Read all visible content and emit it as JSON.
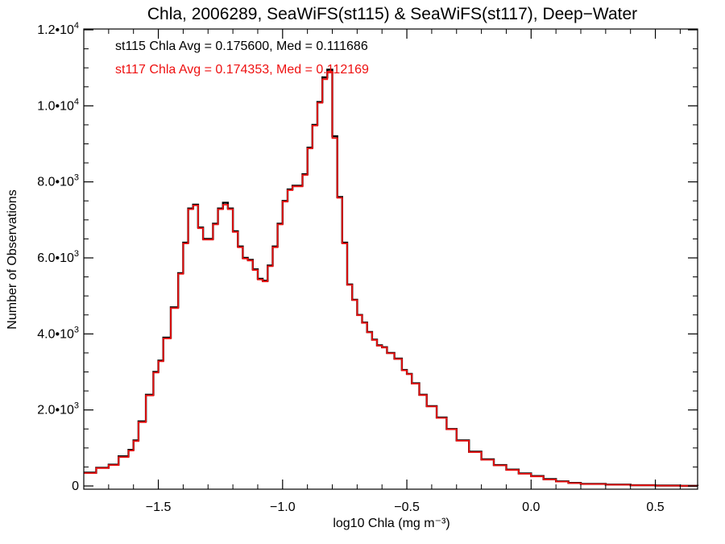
{
  "chart_data": {
    "type": "line",
    "title": "Chla, 2006289, SeaWiFS(st115) & SeaWiFS(st117), Deep−Water",
    "xlabel": "log10 Chla (mg m⁻³)",
    "ylabel": "Number of Observations",
    "xlim": [
      -1.8,
      0.67
    ],
    "ylim": [
      0,
      12000
    ],
    "x_ticks": [
      {
        "value": -1.5,
        "label": "−1.5"
      },
      {
        "value": -1.0,
        "label": "−1.0"
      },
      {
        "value": -0.5,
        "label": "−0.5"
      },
      {
        "value": 0.0,
        "label": "0.0"
      },
      {
        "value": 0.5,
        "label": "0.5"
      }
    ],
    "y_ticks": [
      {
        "value": 0,
        "base": "0",
        "exp": ""
      },
      {
        "value": 2000,
        "base": "2.0•10",
        "exp": "3"
      },
      {
        "value": 4000,
        "base": "4.0•10",
        "exp": "3"
      },
      {
        "value": 6000,
        "base": "6.0•10",
        "exp": "3"
      },
      {
        "value": 8000,
        "base": "8.0•10",
        "exp": "3"
      },
      {
        "value": 10000,
        "base": "1.0•10",
        "exp": "4"
      },
      {
        "value": 12000,
        "base": "1.2•10",
        "exp": "4"
      }
    ],
    "annotations": [
      {
        "text": "st115 Chla Avg = 0.175600, Med = 0.111686",
        "color": "#000000"
      },
      {
        "text": "st117 Chla Avg = 0.174353, Med = 0.112169",
        "color": "#ee1111"
      }
    ],
    "series": [
      {
        "color": "#000000",
        "x": [
          -1.8,
          -1.75,
          -1.7,
          -1.66,
          -1.62,
          -1.6,
          -1.58,
          -1.55,
          -1.52,
          -1.5,
          -1.48,
          -1.45,
          -1.42,
          -1.4,
          -1.38,
          -1.36,
          -1.34,
          -1.32,
          -1.3,
          -1.28,
          -1.26,
          -1.24,
          -1.22,
          -1.2,
          -1.18,
          -1.16,
          -1.14,
          -1.12,
          -1.1,
          -1.08,
          -1.06,
          -1.04,
          -1.02,
          -1.0,
          -0.98,
          -0.96,
          -0.94,
          -0.92,
          -0.9,
          -0.88,
          -0.86,
          -0.84,
          -0.82,
          -0.8,
          -0.78,
          -0.76,
          -0.74,
          -0.72,
          -0.7,
          -0.68,
          -0.66,
          -0.64,
          -0.62,
          -0.6,
          -0.58,
          -0.55,
          -0.52,
          -0.5,
          -0.48,
          -0.45,
          -0.42,
          -0.38,
          -0.34,
          -0.3,
          -0.25,
          -0.2,
          -0.15,
          -0.1,
          -0.05,
          0.0,
          0.05,
          0.1,
          0.15,
          0.2,
          0.3,
          0.4,
          0.5,
          0.6,
          0.67
        ],
        "y": [
          350,
          480,
          560,
          780,
          950,
          1200,
          1700,
          2400,
          3000,
          3300,
          3900,
          4700,
          5600,
          6400,
          7300,
          7400,
          6800,
          6500,
          6500,
          6900,
          7300,
          7450,
          7300,
          6700,
          6300,
          6000,
          5950,
          5700,
          5450,
          5400,
          5800,
          6300,
          6900,
          7500,
          7800,
          7900,
          7900,
          8200,
          8900,
          9500,
          10100,
          10750,
          10950,
          9200,
          7600,
          6400,
          5300,
          4900,
          4500,
          4300,
          4050,
          3850,
          3700,
          3650,
          3500,
          3350,
          3050,
          2950,
          2700,
          2400,
          2100,
          1800,
          1500,
          1200,
          900,
          700,
          550,
          430,
          330,
          260,
          180,
          120,
          80,
          55,
          35,
          20,
          10,
          5,
          3
        ]
      },
      {
        "color": "#ee1111",
        "x": [
          -1.8,
          -1.75,
          -1.7,
          -1.66,
          -1.62,
          -1.6,
          -1.58,
          -1.55,
          -1.52,
          -1.5,
          -1.48,
          -1.45,
          -1.42,
          -1.4,
          -1.38,
          -1.36,
          -1.34,
          -1.32,
          -1.3,
          -1.28,
          -1.26,
          -1.24,
          -1.22,
          -1.2,
          -1.18,
          -1.16,
          -1.14,
          -1.12,
          -1.1,
          -1.08,
          -1.06,
          -1.04,
          -1.02,
          -1.0,
          -0.98,
          -0.96,
          -0.94,
          -0.92,
          -0.9,
          -0.88,
          -0.86,
          -0.84,
          -0.82,
          -0.8,
          -0.78,
          -0.76,
          -0.74,
          -0.72,
          -0.7,
          -0.68,
          -0.66,
          -0.64,
          -0.62,
          -0.6,
          -0.58,
          -0.55,
          -0.52,
          -0.5,
          -0.48,
          -0.45,
          -0.42,
          -0.38,
          -0.34,
          -0.3,
          -0.25,
          -0.2,
          -0.15,
          -0.1,
          -0.05,
          0.0,
          0.05,
          0.1,
          0.15,
          0.2,
          0.3,
          0.4,
          0.5,
          0.6,
          0.67
        ],
        "y": [
          340,
          470,
          550,
          760,
          930,
          1180,
          1680,
          2380,
          2980,
          3280,
          3880,
          4680,
          5580,
          6380,
          7280,
          7380,
          6780,
          6480,
          6480,
          6880,
          7280,
          7400,
          7280,
          6680,
          6280,
          5980,
          5930,
          5680,
          5430,
          5380,
          5780,
          6280,
          6880,
          7480,
          7780,
          7880,
          7880,
          8180,
          8880,
          9480,
          10080,
          10700,
          10900,
          9150,
          7580,
          6380,
          5290,
          4890,
          4490,
          4290,
          4040,
          3840,
          3690,
          3640,
          3490,
          3340,
          3040,
          2940,
          2690,
          2390,
          2090,
          1790,
          1490,
          1190,
          890,
          690,
          540,
          420,
          320,
          250,
          170,
          115,
          75,
          50,
          32,
          18,
          9,
          4,
          2
        ]
      }
    ]
  }
}
